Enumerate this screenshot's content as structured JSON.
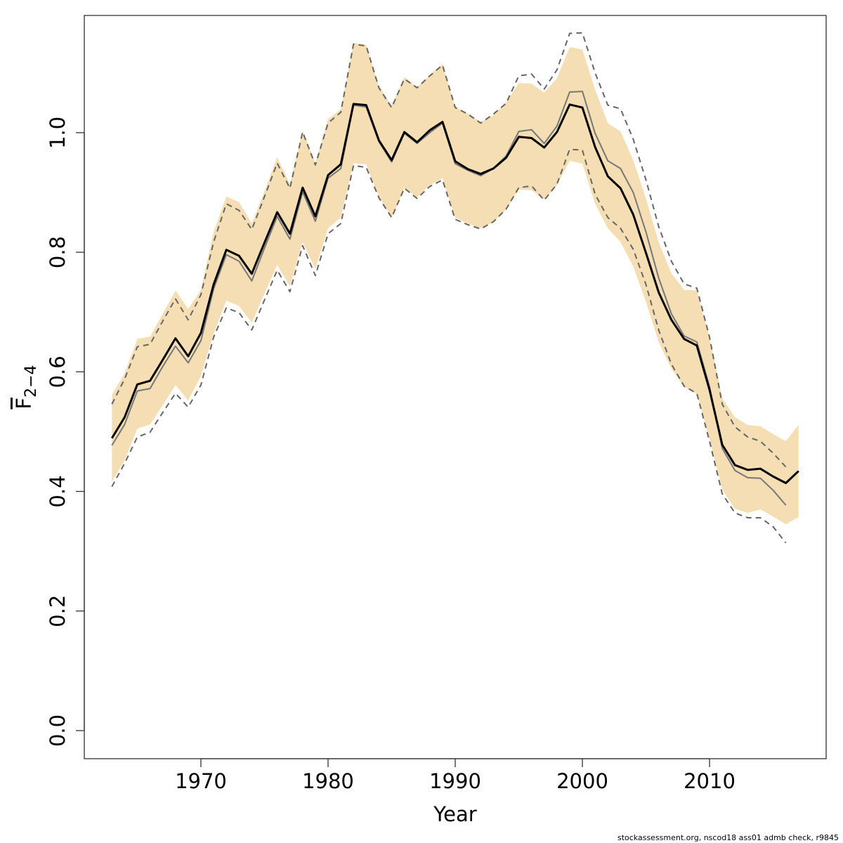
{
  "chart_data": {
    "type": "line",
    "xlabel": "Year",
    "ylabel": {
      "text": "F",
      "subscript": "2−4"
    },
    "footnote": "stockassessment.org, nscod18 ass01 admb check, r9845",
    "x": [
      1963,
      1964,
      1965,
      1966,
      1967,
      1968,
      1969,
      1970,
      1971,
      1972,
      1973,
      1974,
      1975,
      1976,
      1977,
      1978,
      1979,
      1980,
      1981,
      1982,
      1983,
      1984,
      1985,
      1986,
      1987,
      1988,
      1989,
      1990,
      1991,
      1992,
      1993,
      1994,
      1995,
      1996,
      1997,
      1998,
      1999,
      2000,
      2001,
      2002,
      2003,
      2004,
      2005,
      2006,
      2007,
      2008,
      2009,
      2010,
      2011,
      2012,
      2013,
      2014,
      2015,
      2016,
      2017
    ],
    "xlim": [
      1960.83,
      2019.17
    ],
    "xticks": [
      1970,
      1980,
      1990,
      2000,
      2010
    ],
    "ylim": [
      -0.047,
      1.196
    ],
    "yticks": [
      {
        "value": 0,
        "label": "0.0"
      },
      0.2,
      0.4,
      0.6,
      0.8,
      {
        "value": 1,
        "label": "1.0"
      }
    ],
    "band": {
      "color": "#f5deb3",
      "upper": [
        0.562,
        0.597,
        0.655,
        0.659,
        0.697,
        0.736,
        0.705,
        0.737,
        0.834,
        0.893,
        0.884,
        0.848,
        0.902,
        0.959,
        0.914,
        1.004,
        0.949,
        1.023,
        1.039,
        1.15,
        1.147,
        1.078,
        1.045,
        1.093,
        1.076,
        1.096,
        1.115,
        1.043,
        1.032,
        1.018,
        1.029,
        1.051,
        1.083,
        1.082,
        1.067,
        1.091,
        1.143,
        1.139,
        1.072,
        1.016,
        1.002,
        0.954,
        0.89,
        0.817,
        0.765,
        0.737,
        0.736,
        0.658,
        0.556,
        0.524,
        0.511,
        0.509,
        0.496,
        0.484,
        0.511
      ],
      "lower": [
        0.416,
        0.452,
        0.505,
        0.512,
        0.544,
        0.578,
        0.552,
        0.593,
        0.664,
        0.719,
        0.71,
        0.682,
        0.731,
        0.779,
        0.743,
        0.817,
        0.772,
        0.84,
        0.858,
        0.949,
        0.947,
        0.893,
        0.858,
        0.907,
        0.892,
        0.912,
        0.924,
        0.858,
        0.848,
        0.84,
        0.85,
        0.871,
        0.905,
        0.904,
        0.888,
        0.912,
        0.953,
        0.948,
        0.881,
        0.84,
        0.817,
        0.776,
        0.717,
        0.65,
        0.605,
        0.575,
        0.563,
        0.488,
        0.403,
        0.371,
        0.364,
        0.37,
        0.358,
        0.345,
        0.357
      ]
    },
    "series": [
      {
        "color": "#666666",
        "dashed": true,
        "width": 2,
        "values": [
          0.546,
          0.588,
          0.642,
          0.646,
          0.685,
          0.722,
          0.687,
          0.729,
          0.817,
          0.881,
          0.87,
          0.838,
          0.893,
          0.949,
          0.907,
          1.001,
          0.946,
          1.016,
          1.034,
          1.148,
          1.145,
          1.075,
          1.042,
          1.09,
          1.075,
          1.095,
          1.113,
          1.042,
          1.031,
          1.016,
          1.031,
          1.049,
          1.095,
          1.098,
          1.073,
          1.105,
          1.166,
          1.167,
          1.1,
          1.046,
          1.04,
          0.989,
          0.921,
          0.843,
          0.785,
          0.747,
          0.74,
          0.658,
          0.546,
          0.508,
          0.491,
          0.484,
          0.464,
          0.441,
          null
        ]
      },
      {
        "color": "#666666",
        "dashed": true,
        "width": 2,
        "values": [
          0.408,
          0.447,
          0.491,
          0.499,
          0.532,
          0.564,
          0.541,
          0.578,
          0.658,
          0.707,
          0.699,
          0.67,
          0.72,
          0.77,
          0.734,
          0.811,
          0.761,
          0.831,
          0.848,
          0.945,
          0.942,
          0.891,
          0.858,
          0.907,
          0.89,
          0.91,
          0.921,
          0.855,
          0.846,
          0.839,
          0.851,
          0.872,
          0.908,
          0.911,
          0.887,
          0.914,
          0.972,
          0.971,
          0.897,
          0.858,
          0.84,
          0.805,
          0.746,
          0.67,
          0.613,
          0.576,
          0.564,
          0.484,
          0.396,
          0.364,
          0.356,
          0.356,
          0.341,
          0.314,
          null
        ]
      },
      {
        "color": "#777777",
        "dashed": false,
        "width": 2,
        "values": [
          0.477,
          0.512,
          0.568,
          0.572,
          0.609,
          0.643,
          0.615,
          0.652,
          0.739,
          0.796,
          0.785,
          0.752,
          0.807,
          0.86,
          0.822,
          0.901,
          0.852,
          0.924,
          0.94,
          1.046,
          1.043,
          0.985,
          0.951,
          0.999,
          0.982,
          1.0,
          1.016,
          0.948,
          0.937,
          0.928,
          0.94,
          0.961,
          1.002,
          1.005,
          0.982,
          1.011,
          1.068,
          1.069,
          0.999,
          0.953,
          0.94,
          0.9,
          0.834,
          0.757,
          0.697,
          0.66,
          0.65,
          0.575,
          0.472,
          0.435,
          0.423,
          0.422,
          0.402,
          0.377,
          null
        ]
      },
      {
        "color": "#000000",
        "dashed": false,
        "width": 3,
        "values": [
          0.489,
          0.524,
          0.579,
          0.585,
          0.62,
          0.656,
          0.626,
          0.665,
          0.746,
          0.804,
          0.794,
          0.764,
          0.816,
          0.867,
          0.831,
          0.908,
          0.86,
          0.929,
          0.947,
          1.048,
          1.046,
          0.987,
          0.954,
          1.001,
          0.984,
          1.004,
          1.018,
          0.952,
          0.939,
          0.931,
          0.94,
          0.958,
          0.993,
          0.991,
          0.975,
          1.001,
          1.047,
          1.042,
          0.976,
          0.927,
          0.907,
          0.863,
          0.799,
          0.733,
          0.687,
          0.655,
          0.644,
          0.57,
          0.478,
          0.444,
          0.436,
          0.438,
          0.425,
          0.414,
          0.434
        ]
      }
    ]
  }
}
